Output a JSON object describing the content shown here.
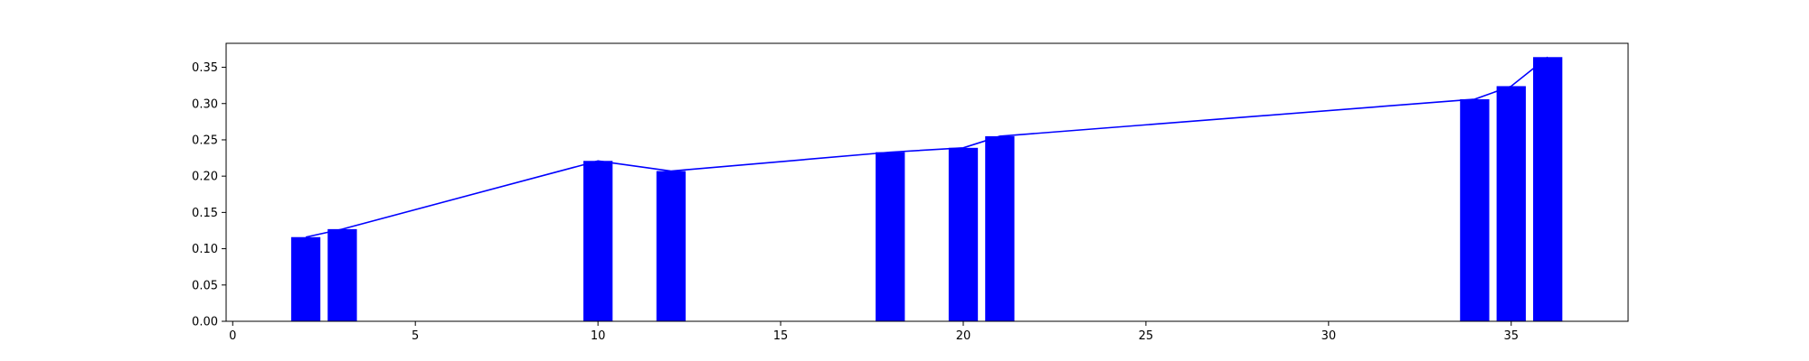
{
  "chart_data": {
    "type": "bar",
    "title": "",
    "xlabel": "",
    "ylabel": "",
    "xlim": [
      -0.18,
      38.2
    ],
    "ylim": [
      0,
      0.383
    ],
    "grid": false,
    "x_ticks": [
      0,
      5,
      10,
      15,
      20,
      25,
      30,
      35
    ],
    "x_tick_labels": [
      "0",
      "5",
      "10",
      "15",
      "20",
      "25",
      "30",
      "35"
    ],
    "y_ticks": [
      0,
      0.05,
      0.1,
      0.15,
      0.2,
      0.25,
      0.3,
      0.35
    ],
    "y_tick_labels": [
      "0.00",
      "0.05",
      "0.10",
      "0.15",
      "0.20",
      "0.25",
      "0.30",
      "0.35"
    ],
    "bar_width": 0.8,
    "series": [
      {
        "type": "bar",
        "x": [
          2,
          3,
          10,
          12,
          18,
          20,
          21,
          34,
          35,
          36
        ],
        "values": [
          0.116,
          0.127,
          0.221,
          0.207,
          0.233,
          0.239,
          0.255,
          0.306,
          0.324,
          0.364
        ],
        "color": "#0000ff"
      },
      {
        "type": "line",
        "x": [
          2,
          3,
          10,
          12,
          18,
          20,
          21,
          34,
          35,
          36
        ],
        "values": [
          0.116,
          0.127,
          0.221,
          0.207,
          0.233,
          0.239,
          0.255,
          0.306,
          0.324,
          0.364
        ],
        "color": "#0000ff"
      }
    ]
  }
}
